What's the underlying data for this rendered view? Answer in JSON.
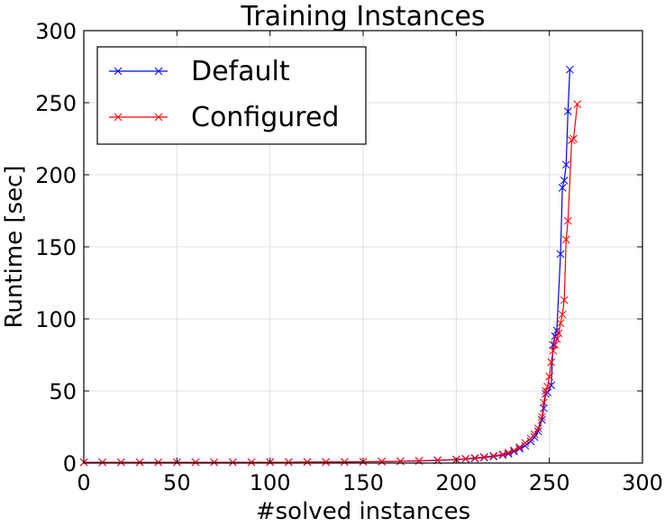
{
  "chart_data": {
    "type": "line",
    "title": "Training Instances",
    "xlabel": "#solved instances",
    "ylabel": "Runtime [sec]",
    "xlim": [
      0,
      300
    ],
    "ylim": [
      0,
      300
    ],
    "xticks": [
      "0",
      "50",
      "100",
      "150",
      "200",
      "250",
      "300"
    ],
    "yticks": [
      "0",
      "50",
      "100",
      "150",
      "200",
      "250",
      "300"
    ],
    "grid": true,
    "legend_position": "top-left",
    "marker": "x",
    "series": [
      {
        "name": "Default",
        "color": "#0000ff",
        "points": [
          [
            0,
            0.5
          ],
          [
            10,
            0.5
          ],
          [
            20,
            0.5
          ],
          [
            30,
            0.5
          ],
          [
            40,
            0.5
          ],
          [
            50,
            0.5
          ],
          [
            60,
            0.5
          ],
          [
            70,
            0.5
          ],
          [
            80,
            0.5
          ],
          [
            90,
            0.5
          ],
          [
            100,
            0.6
          ],
          [
            110,
            0.6
          ],
          [
            120,
            0.7
          ],
          [
            130,
            0.7
          ],
          [
            140,
            0.8
          ],
          [
            150,
            0.9
          ],
          [
            160,
            1.0
          ],
          [
            170,
            1.2
          ],
          [
            180,
            1.5
          ],
          [
            190,
            1.8
          ],
          [
            200,
            2.3
          ],
          [
            205,
            2.8
          ],
          [
            210,
            3.2
          ],
          [
            215,
            3.8
          ],
          [
            220,
            4.5
          ],
          [
            225,
            5.5
          ],
          [
            228,
            6.5
          ],
          [
            231,
            8
          ],
          [
            234,
            10
          ],
          [
            237,
            12
          ],
          [
            240,
            15
          ],
          [
            242,
            18
          ],
          [
            244,
            22
          ],
          [
            246,
            30
          ],
          [
            247,
            38
          ],
          [
            248,
            48
          ],
          [
            249,
            49
          ],
          [
            251,
            54
          ],
          [
            252,
            82
          ],
          [
            253,
            88
          ],
          [
            254,
            92
          ],
          [
            256,
            145
          ],
          [
            257,
            191
          ],
          [
            258,
            196
          ],
          [
            259,
            207
          ],
          [
            260,
            244
          ],
          [
            261,
            273
          ]
        ]
      },
      {
        "name": "Configured",
        "color": "#ff0000",
        "points": [
          [
            0,
            0.5
          ],
          [
            10,
            0.5
          ],
          [
            20,
            0.5
          ],
          [
            30,
            0.5
          ],
          [
            40,
            0.5
          ],
          [
            50,
            0.5
          ],
          [
            60,
            0.5
          ],
          [
            70,
            0.5
          ],
          [
            80,
            0.5
          ],
          [
            90,
            0.5
          ],
          [
            100,
            0.6
          ],
          [
            110,
            0.6
          ],
          [
            120,
            0.7
          ],
          [
            130,
            0.7
          ],
          [
            140,
            0.8
          ],
          [
            150,
            0.9
          ],
          [
            160,
            1.0
          ],
          [
            170,
            1.3
          ],
          [
            180,
            1.6
          ],
          [
            190,
            2.0
          ],
          [
            200,
            2.5
          ],
          [
            205,
            3.0
          ],
          [
            210,
            3.5
          ],
          [
            215,
            4.2
          ],
          [
            220,
            5.0
          ],
          [
            225,
            6.0
          ],
          [
            228,
            7.2
          ],
          [
            231,
            8.8
          ],
          [
            234,
            11
          ],
          [
            237,
            14
          ],
          [
            240,
            17
          ],
          [
            242,
            20
          ],
          [
            244,
            24
          ],
          [
            246,
            32
          ],
          [
            247,
            42
          ],
          [
            248,
            50
          ],
          [
            249,
            53
          ],
          [
            250,
            60
          ],
          [
            251,
            70
          ],
          [
            252,
            78
          ],
          [
            253,
            82
          ],
          [
            254,
            86
          ],
          [
            255,
            90
          ],
          [
            256,
            97
          ],
          [
            257,
            103
          ],
          [
            258,
            113
          ],
          [
            259,
            155
          ],
          [
            260,
            168
          ],
          [
            262,
            224
          ],
          [
            263,
            225
          ],
          [
            265,
            249
          ]
        ]
      }
    ]
  }
}
